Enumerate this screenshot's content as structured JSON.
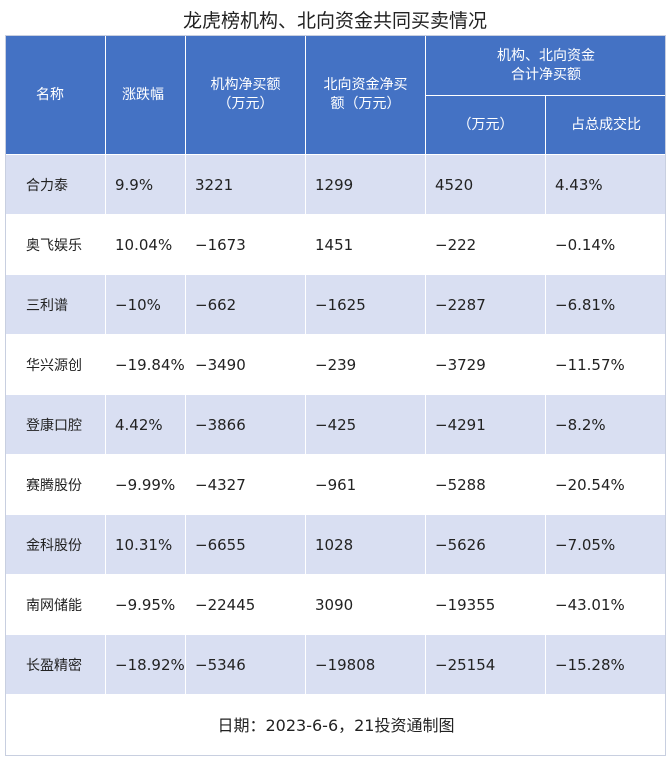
{
  "title": "龙虎榜机构、北向资金共同买卖情况",
  "headers": {
    "name": "名称",
    "change": "涨跌幅",
    "inst": "机构净买额\n（万元）",
    "north": "北向资金净买\n额（万元）",
    "combined_group": "机构、北向资金\n合计净买额",
    "combined_amount": "（万元）",
    "combined_ratio": "占总成交比"
  },
  "rows": [
    {
      "name": "合力泰",
      "change": "9.9%",
      "inst": "3221",
      "north": "1299",
      "combined": "4520",
      "ratio": "4.43%"
    },
    {
      "name": "奥飞娱乐",
      "change": "10.04%",
      "inst": "−1673",
      "north": "1451",
      "combined": "−222",
      "ratio": "−0.14%"
    },
    {
      "name": "三利谱",
      "change": "−10%",
      "inst": "−662",
      "north": "−1625",
      "combined": "−2287",
      "ratio": "−6.81%"
    },
    {
      "name": "华兴源创",
      "change": "−19.84%",
      "inst": "−3490",
      "north": "−239",
      "combined": "−3729",
      "ratio": "−11.57%"
    },
    {
      "name": "登康口腔",
      "change": "4.42%",
      "inst": "−3866",
      "north": "−425",
      "combined": "−4291",
      "ratio": "−8.2%"
    },
    {
      "name": "赛腾股份",
      "change": "−9.99%",
      "inst": "−4327",
      "north": "−961",
      "combined": "−5288",
      "ratio": "−20.54%"
    },
    {
      "name": "金科股份",
      "change": "10.31%",
      "inst": "−6655",
      "north": "1028",
      "combined": "−5626",
      "ratio": "−7.05%"
    },
    {
      "name": "南网储能",
      "change": "−9.95%",
      "inst": "−22445",
      "north": "3090",
      "combined": "−19355",
      "ratio": "−43.01%"
    },
    {
      "name": "长盈精密",
      "change": "−18.92%",
      "inst": "−5346",
      "north": "−19808",
      "combined": "−25154",
      "ratio": "−15.28%"
    }
  ],
  "footer": "日期：2023-6-6，21投资通制图",
  "colors": {
    "header_bg": "#4472c4",
    "band": "#d9dff2"
  }
}
